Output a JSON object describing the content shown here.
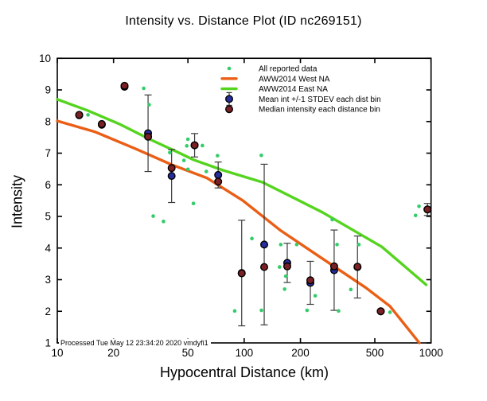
{
  "title": "Intensity vs. Distance Plot (ID nc269151)",
  "footer": "Processed Tue May 12 23:34:20 2020 vmdyfi1",
  "colors": {
    "all_data": "#34cc6a",
    "west_na": "#ea5e15",
    "east_na": "#55d41f",
    "mean": "#252e9c",
    "median": "#7b2125",
    "error_bar": "#3a3a3a",
    "axis": "#000000",
    "background": "#ffffff"
  },
  "chart_data": {
    "type": "scatter",
    "title": "Intensity vs. Distance Plot (ID nc269151)",
    "xlabel": "Hypocentral Distance (km)",
    "ylabel": "Intensity",
    "x_scale": "log",
    "xlim": [
      10,
      1000
    ],
    "ylim": [
      1,
      10
    ],
    "x_ticks": [
      10,
      20,
      50,
      100,
      200,
      500,
      1000
    ],
    "y_ticks": [
      1,
      2,
      3,
      4,
      5,
      6,
      7,
      8,
      9,
      10
    ],
    "grid": false,
    "legend_position": "top-right-inside",
    "series": [
      {
        "name": "All reported data",
        "type": "scatter",
        "marker": "small-dot",
        "color_key": "all_data",
        "points": [
          [
            29,
            9.05
          ],
          [
            31,
            8.53
          ],
          [
            14.6,
            8.21
          ],
          [
            50,
            7.44
          ],
          [
            49.3,
            7.23
          ],
          [
            59.8,
            7.24
          ],
          [
            40,
            7.02
          ],
          [
            123.5,
            6.93
          ],
          [
            72,
            6.92
          ],
          [
            47.6,
            6.77
          ],
          [
            50,
            6.49
          ],
          [
            62.7,
            6.42
          ],
          [
            53.5,
            5.41
          ],
          [
            862,
            5.32
          ],
          [
            826,
            5.03
          ],
          [
            32.6,
            5.01
          ],
          [
            296,
            4.9
          ],
          [
            37,
            4.84
          ],
          [
            110,
            4.3
          ],
          [
            157,
            4.11
          ],
          [
            191,
            4.11
          ],
          [
            314,
            4.11
          ],
          [
            411,
            4.11
          ],
          [
            124.7,
            3.4
          ],
          [
            154.6,
            3.4
          ],
          [
            167,
            3.11
          ],
          [
            164.6,
            2.7
          ],
          [
            372,
            2.69
          ],
          [
            240,
            2.49
          ],
          [
            89,
            2.01
          ],
          [
            123.7,
            2.03
          ],
          [
            217,
            2.03
          ],
          [
            320,
            2.01
          ],
          [
            603,
            1.97
          ]
        ]
      },
      {
        "name": "AWW2014 West NA",
        "type": "line",
        "color_key": "west_na",
        "points": [
          [
            10,
            8.02
          ],
          [
            16,
            7.67
          ],
          [
            26.2,
            7.14
          ],
          [
            41.1,
            6.63
          ],
          [
            63.4,
            6.21
          ],
          [
            98.4,
            5.5
          ],
          [
            157,
            4.55
          ],
          [
            304,
            3.41
          ],
          [
            449,
            2.74
          ],
          [
            603,
            2.16
          ],
          [
            866,
            1.0
          ]
        ]
      },
      {
        "name": "AWW2014 East NA",
        "type": "line",
        "color_key": "east_na",
        "points": [
          [
            10,
            8.7
          ],
          [
            14.5,
            8.35
          ],
          [
            21.5,
            7.92
          ],
          [
            31.2,
            7.44
          ],
          [
            44.8,
            7.01
          ],
          [
            53.6,
            6.79
          ],
          [
            77,
            6.46
          ],
          [
            125.5,
            6.08
          ],
          [
            262,
            5.13
          ],
          [
            545,
            4.04
          ],
          [
            942,
            2.84
          ]
        ]
      },
      {
        "name": "Mean int +/-1 STDEV each dist bin",
        "type": "scatter-errorbar",
        "color_key": "mean",
        "points_format": [
          "distance_km",
          "mean_intensity",
          "stdev"
        ],
        "points": [
          [
            13.1,
            8.2,
            0
          ],
          [
            17.3,
            7.9,
            0
          ],
          [
            22.9,
            9.1,
            0
          ],
          [
            30.6,
            7.63,
            1.21
          ],
          [
            40.9,
            6.28,
            0.84
          ],
          [
            54.3,
            7.25,
            0.37
          ],
          [
            72.6,
            6.31,
            0.41
          ],
          [
            97,
            3.21,
            1.67
          ],
          [
            128,
            4.11,
            2.54
          ],
          [
            170,
            3.53,
            0.62
          ],
          [
            226,
            2.9,
            0.68
          ],
          [
            303,
            3.3,
            1.27
          ],
          [
            404,
            3.4,
            0.98
          ],
          [
            538,
            2.0,
            0
          ],
          [
            957,
            5.22,
            0.19
          ]
        ]
      },
      {
        "name": "Median intensity each distance bin",
        "type": "scatter",
        "color_key": "median",
        "points_format": [
          "distance_km",
          "median_intensity"
        ],
        "points": [
          [
            13.1,
            8.21
          ],
          [
            17.3,
            7.92
          ],
          [
            22.9,
            9.13
          ],
          [
            30.6,
            7.52
          ],
          [
            40.9,
            6.53
          ],
          [
            54.3,
            7.25
          ],
          [
            72.6,
            6.1
          ],
          [
            97,
            3.2
          ],
          [
            128,
            3.4
          ],
          [
            170,
            3.42
          ],
          [
            226,
            2.98
          ],
          [
            303,
            3.42
          ],
          [
            404,
            3.41
          ],
          [
            538,
            2.0
          ],
          [
            957,
            5.22
          ]
        ]
      }
    ]
  }
}
